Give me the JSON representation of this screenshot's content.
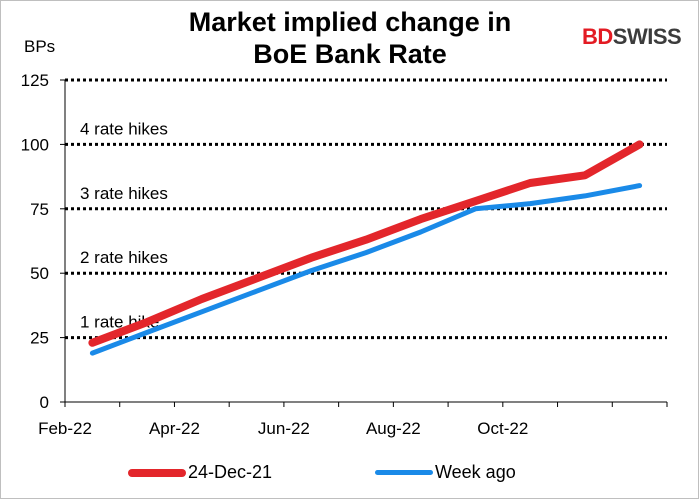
{
  "chart_data": {
    "type": "line",
    "title": "Market implied change in BoE Bank Rate",
    "title_lines": [
      "Market implied change in",
      "BoE Bank Rate"
    ],
    "ylabel": "BPs",
    "ylim": [
      0,
      125
    ],
    "yticks": [
      0,
      25,
      50,
      75,
      100,
      125
    ],
    "x_ticks": [
      "Feb-22",
      "Apr-22",
      "Jun-22",
      "Aug-22",
      "Oct-22"
    ],
    "x": [
      "Feb-22",
      "Mar-22",
      "Apr-22",
      "May-22",
      "Jun-22",
      "Jul-22",
      "Aug-22",
      "Sep-22",
      "Oct-22",
      "Nov-22",
      "Dec-22"
    ],
    "series": [
      {
        "name": "24-Dec-21",
        "color": "#e3262b",
        "values": [
          23,
          31,
          40,
          48,
          56,
          63,
          71,
          78,
          85,
          88,
          100
        ]
      },
      {
        "name": "Week ago",
        "color": "#1a8ae8",
        "values": [
          19,
          27,
          35,
          43,
          51,
          58,
          66,
          75,
          77,
          80,
          84
        ]
      }
    ],
    "reference_lines": [
      {
        "value": 25,
        "label": "1 rate hike"
      },
      {
        "value": 50,
        "label": "2 rate hikes"
      },
      {
        "value": 75,
        "label": "3 rate hikes"
      },
      {
        "value": 100,
        "label": "4 rate hikes"
      },
      {
        "value": 125,
        "label": ""
      }
    ],
    "grid": false,
    "legend_position": "bottom"
  },
  "logo": {
    "part1": "BD",
    "part2": "SWISS"
  }
}
